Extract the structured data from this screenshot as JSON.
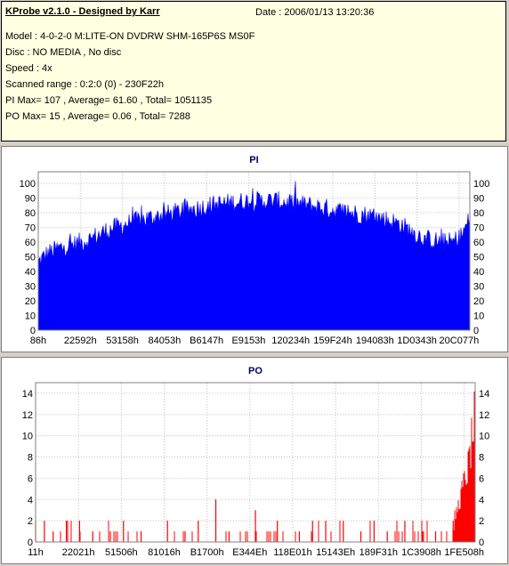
{
  "header": {
    "title": "KProbe v2.1.0 - Designed by Karr",
    "date": "Date : 2006/01/13 13:20:36",
    "lines": [
      "Model : 4-0-2-0 M:LITE-ON DVDRW SHM-165P6S MS0F",
      "Disc : NO MEDIA , No disc",
      "Speed : 4x",
      "Scanned range : 0:2:0 (0) - 230F22h",
      "PI Max= 107 , Average= 61.60 , Total= 1051135",
      "PO Max= 15 , Average= 0.06 , Total= 7288"
    ]
  },
  "chart_data": [
    {
      "type": "bar",
      "title": "PI",
      "color": "#0000ff",
      "ylim": [
        0,
        108
      ],
      "yticks": [
        0,
        10,
        20,
        30,
        40,
        50,
        60,
        70,
        80,
        90,
        100
      ],
      "xtick_labels": [
        "86h",
        "22592h",
        "53158h",
        "84053h",
        "B6147h",
        "E9153h",
        "120234h",
        "159F24h",
        "194083h",
        "1D0343h",
        "20C077h"
      ],
      "profile_x": [
        0,
        0.02,
        0.05,
        0.08,
        0.12,
        0.16,
        0.2,
        0.25,
        0.3,
        0.35,
        0.4,
        0.45,
        0.5,
        0.55,
        0.6,
        0.65,
        0.7,
        0.75,
        0.8,
        0.84,
        0.87,
        0.9,
        0.93,
        0.96,
        0.98,
        1.0
      ],
      "profile_y": [
        46,
        52,
        56,
        58,
        62,
        68,
        72,
        76,
        79,
        82,
        85,
        87,
        88,
        88,
        86,
        84,
        81,
        79,
        76,
        72,
        66,
        62,
        60,
        60,
        64,
        76
      ],
      "max": 107
    },
    {
      "type": "bar",
      "title": "PO",
      "color": "#ff0000",
      "ylim": [
        0,
        15
      ],
      "yticks": [
        0,
        2,
        4,
        6,
        8,
        10,
        12,
        14
      ],
      "xtick_labels": [
        "11h",
        "22021h",
        "51506h",
        "81016h",
        "B1700h",
        "E344Eh",
        "118E01h",
        "15143Eh",
        "189F31h",
        "1C3908h",
        "1FE508h"
      ],
      "spikes_x": [
        0.0,
        0.02,
        0.04,
        0.07,
        0.1,
        0.13,
        0.17,
        0.2,
        0.24,
        0.3,
        0.34,
        0.37,
        0.41,
        0.44,
        0.5,
        0.55,
        0.6,
        0.63,
        0.66,
        0.7,
        0.74,
        0.77,
        0.8,
        0.84,
        0.88,
        0.91,
        0.95
      ],
      "spikes_y": [
        2,
        2,
        1,
        2,
        2,
        1,
        1,
        2,
        1,
        2,
        1,
        2,
        4,
        1,
        3,
        2,
        1,
        2,
        2,
        2,
        1,
        2,
        1,
        2,
        1,
        1,
        2
      ],
      "ramp_x": [
        0.955,
        0.965,
        0.975,
        0.985,
        0.99,
        0.995,
        1.0
      ],
      "ramp_y": [
        3,
        5,
        7,
        9,
        11,
        13,
        15
      ],
      "max": 15
    }
  ]
}
